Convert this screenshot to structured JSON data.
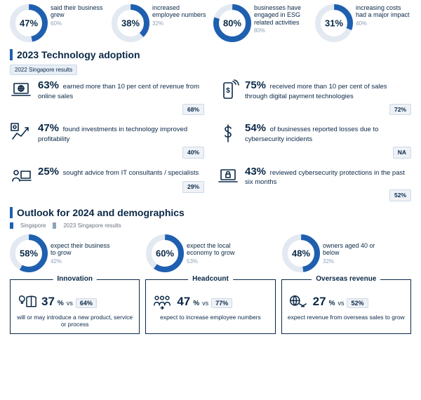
{
  "colors": {
    "primary": "#1f5fb0",
    "dark": "#0a2847",
    "track": "#e3e9f1",
    "prev": "#8fa3b8",
    "badge_bg": "#eef2f7",
    "badge_border": "#cdd9e6",
    "bg": "#ffffff"
  },
  "top_row": [
    {
      "value": 47,
      "prev": 60,
      "label": "said their business grew"
    },
    {
      "value": 38,
      "prev": 32,
      "label": "increased employee numbers"
    },
    {
      "value": 80,
      "prev": 80,
      "label": "businesses have engaged in ESG related activities"
    },
    {
      "value": 31,
      "prev": 40,
      "label": "increasing costs had a major impact"
    }
  ],
  "section_tech": {
    "title": "2023 Technology adoption",
    "prev_badge": "2022 Singapore results",
    "items": [
      {
        "icon": "laptop-globe",
        "value": 63,
        "text": "earned more than 10 per cent of revenue from online sales",
        "badge": "68%"
      },
      {
        "icon": "phone-dollar",
        "value": 75,
        "text": "received more than 10 per cent of sales through digital payment technologies",
        "badge": "72%"
      },
      {
        "icon": "chart-cog",
        "value": 47,
        "text": "found investments in technology improved profitability",
        "badge": "40%"
      },
      {
        "icon": "dollar",
        "value": 54,
        "text": "of businesses reported losses due to cybersecurity incidents",
        "badge": "NA"
      },
      {
        "icon": "consultant",
        "value": 25,
        "text": "sought advice from IT consultants / specialists",
        "badge": "29%"
      },
      {
        "icon": "laptop-lock",
        "value": 43,
        "text": "reviewed cybersecurity protections in the past six months",
        "badge": "52%"
      }
    ]
  },
  "section_outlook": {
    "title": "Outlook for 2024 and demographics",
    "legend": [
      "Singapore",
      "2023 Singapore results"
    ],
    "donuts": [
      {
        "value": 58,
        "prev": 42,
        "label": "expect their business to grow"
      },
      {
        "value": 60,
        "prev": 53,
        "label": "expect the local economy to grow"
      },
      {
        "value": 48,
        "prev": 32,
        "label": "owners aged 40 or below"
      }
    ],
    "boxes": [
      {
        "title": "Innovation",
        "icon": "lightbulb-book",
        "value": 37,
        "cmp": "64%",
        "desc": "will or may introduce a new product, service or process"
      },
      {
        "title": "Headcount",
        "icon": "people-arrow",
        "value": 47,
        "cmp": "77%",
        "desc": "expect to increase employee numbers"
      },
      {
        "title": "Overseas revenue",
        "icon": "globe-shake",
        "value": 27,
        "cmp": "52%",
        "desc": "expect revenue from overseas sales to grow"
      }
    ]
  },
  "donut_style": {
    "size": 54,
    "stroke": 8,
    "track_color": "#e3e9f1",
    "fill_color": "#1f5fb0",
    "label_fontsize": 9,
    "value_fontsize": 13
  }
}
